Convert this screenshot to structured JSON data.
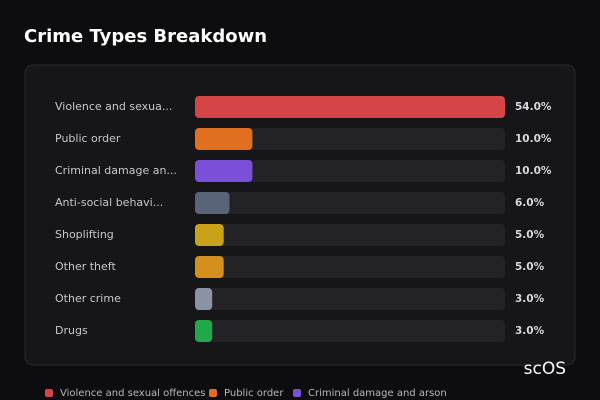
{
  "chart_data": {
    "type": "bar",
    "orientation": "horizontal",
    "title": "Crime Types Breakdown",
    "categories": [
      "Violence and sexua...",
      "Public order",
      "Criminal damage an...",
      "Anti-social behavi...",
      "Shoplifting",
      "Other theft",
      "Other crime",
      "Drugs"
    ],
    "values": [
      54,
      10,
      10,
      6,
      5,
      5,
      3,
      3
    ],
    "value_labels": [
      "54.0%",
      "10.0%",
      "10.0%",
      "6.0%",
      "5.0%",
      "5.0%",
      "3.0%",
      "3.0%"
    ],
    "colors": [
      "#d64545",
      "#e07020",
      "#7b4fd8",
      "#5a6478",
      "#c9a21a",
      "#d4901c",
      "#8a93a6",
      "#22a84a"
    ],
    "legend": [
      {
        "name": "Violence and sexual offences",
        "color": "#d64545"
      },
      {
        "name": "Public order",
        "color": "#e07020"
      },
      {
        "name": "Criminal damage and arson",
        "color": "#7b4fd8"
      }
    ],
    "watermark": "scOS"
  }
}
